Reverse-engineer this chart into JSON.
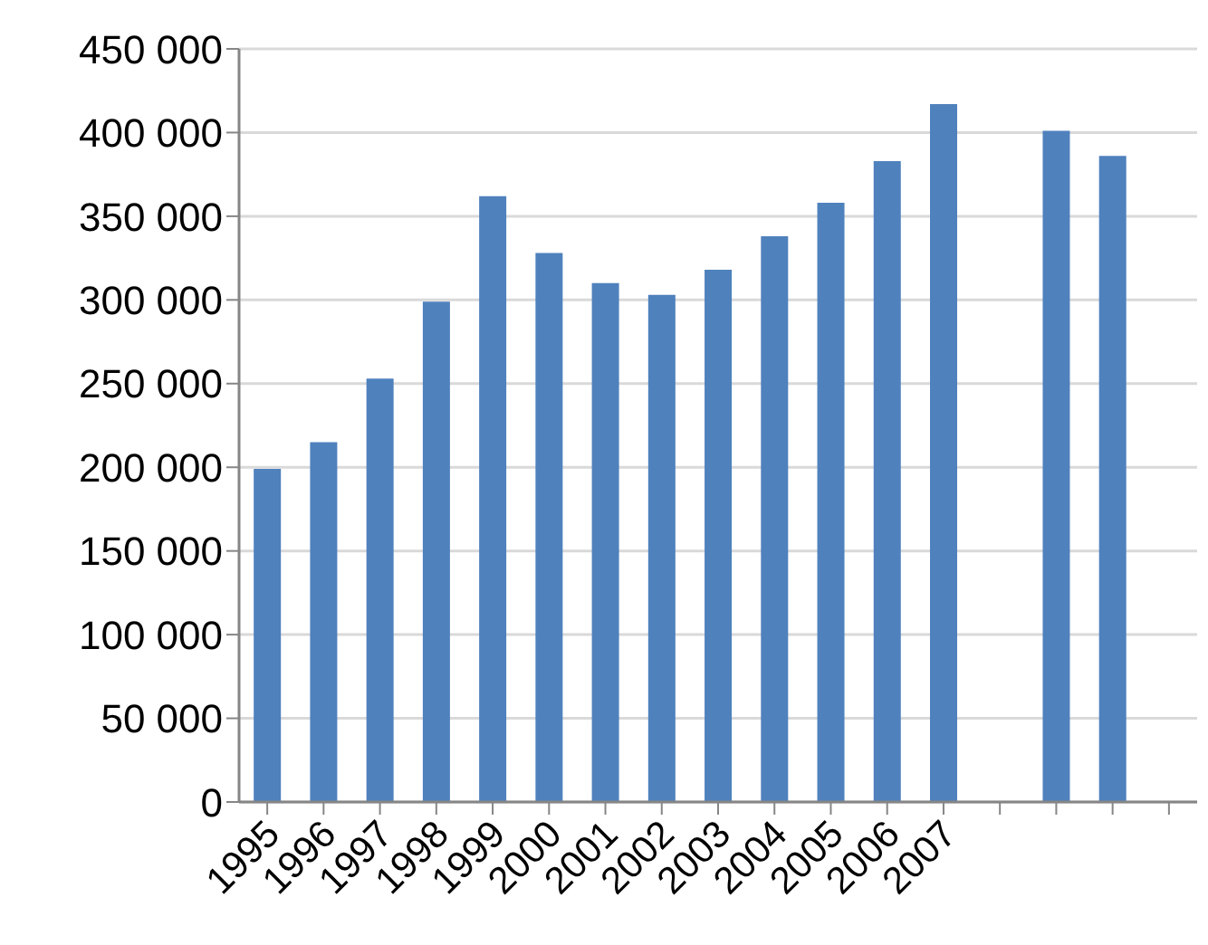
{
  "chart_data": {
    "type": "bar",
    "categories": [
      "1995",
      "1996",
      "1997",
      "1998",
      "1999",
      "2000",
      "2001",
      "2002",
      "2003",
      "2004",
      "2005",
      "2006",
      "2007",
      null,
      null,
      null,
      null
    ],
    "values": [
      199000,
      215000,
      253000,
      299000,
      362000,
      328000,
      310000,
      303000,
      318000,
      338000,
      358000,
      383000,
      417000,
      null,
      401000,
      386000,
      null
    ],
    "color": "#4f81bd",
    "ylim": [
      0,
      450000
    ],
    "yticks": [
      {
        "value": 0,
        "label": "0"
      },
      {
        "value": 50000,
        "label": "50 000"
      },
      {
        "value": 100000,
        "label": "100 000"
      },
      {
        "value": 150000,
        "label": "150 000"
      },
      {
        "value": 200000,
        "label": "200 000"
      },
      {
        "value": 250000,
        "label": "250 000"
      },
      {
        "value": 300000,
        "label": "300 000"
      },
      {
        "value": 350000,
        "label": "350 000"
      },
      {
        "value": 400000,
        "label": "400 000"
      },
      {
        "value": 450000,
        "label": "450 000"
      }
    ],
    "grid": "y"
  }
}
